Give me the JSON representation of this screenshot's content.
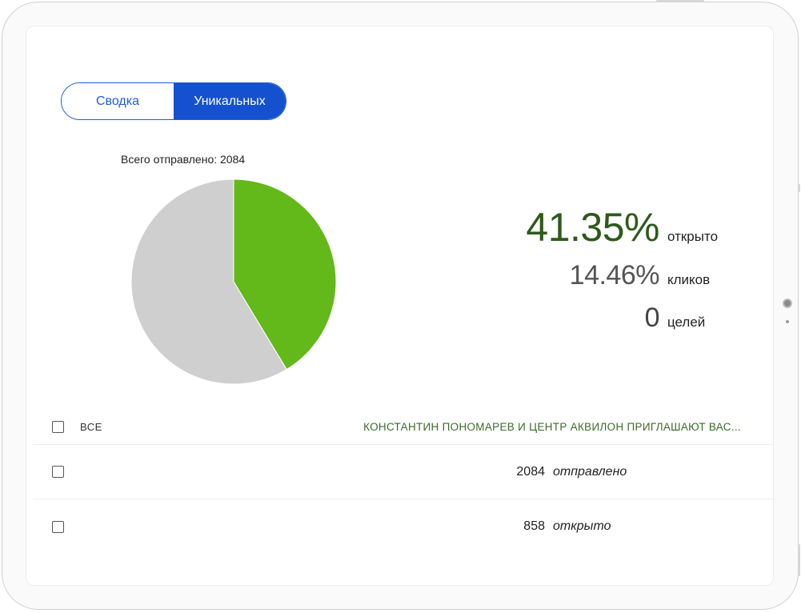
{
  "tabs": [
    {
      "label": "Сводка",
      "active": false
    },
    {
      "label": "Уникальных",
      "active": true
    }
  ],
  "summary": {
    "total_label": "Всего отправлено: 2084"
  },
  "stats": {
    "open": {
      "value": "41.35%",
      "label": "открыто"
    },
    "clicks": {
      "value": "14.46%",
      "label": "кликов"
    },
    "goals": {
      "value": "0",
      "label": "целей"
    }
  },
  "chart_data": {
    "type": "pie",
    "slices": [
      {
        "value": 41.35,
        "color": "#63b81a"
      },
      {
        "value": 58.65,
        "color": "#cfcfcf"
      }
    ]
  },
  "table": {
    "select_all_label": "ВСЕ",
    "campaign_header": "КОНСТАНТИН ПОНОМАРЕВ И ЦЕНТР АКВИЛОН ПРИГЛАШАЮТ ВАС...",
    "rows": [
      {
        "value": "2084",
        "label": "отправлено"
      },
      {
        "value": "858",
        "label": "открыто"
      }
    ]
  },
  "colors": {
    "accent": "#1551cf",
    "open_green": "#63b81a",
    "dark_green": "#2e5a1c"
  }
}
